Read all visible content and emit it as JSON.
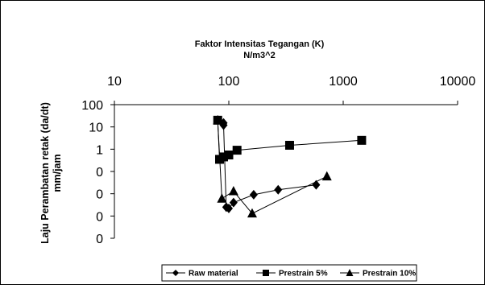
{
  "chart_data": {
    "type": "scatter",
    "title": "Faktor Intensitas Tegangan (K)",
    "subtitle": "N/m3^2",
    "xlabel": "",
    "ylabel": "Laju Perambatan retak (da/dt)",
    "ylabel_unit": "mm/jam",
    "x_scale": "log",
    "y_scale": "log",
    "xlim": [
      10,
      10000
    ],
    "ylim": [
      0.0001,
      100
    ],
    "x_axis_position": "top",
    "grid": false,
    "legend_position": "bottom",
    "x_tick_labels": [
      "10",
      "100",
      "1000",
      "10000"
    ],
    "y_tick_labels": [
      "100",
      "10",
      "1",
      "0",
      "0",
      "0",
      "0"
    ],
    "series": [
      {
        "name": "Raw material",
        "marker": "diamond",
        "x": [
          90,
          90,
          95,
          100,
          110,
          165,
          270,
          580
        ],
        "y": [
          15,
          12,
          0.0025,
          0.0022,
          0.004,
          0.009,
          0.015,
          0.025
        ]
      },
      {
        "name": "Prestrain 5%",
        "marker": "square",
        "x": [
          80,
          83,
          90,
          100,
          118,
          340,
          1450
        ],
        "y": [
          20,
          0.35,
          0.45,
          0.55,
          0.9,
          1.5,
          2.5
        ]
      },
      {
        "name": "Prestrain 10%",
        "marker": "triangle",
        "x": [
          80,
          87,
          110,
          160,
          720
        ],
        "y": [
          20,
          0.006,
          0.013,
          0.0013,
          0.06
        ]
      }
    ]
  }
}
